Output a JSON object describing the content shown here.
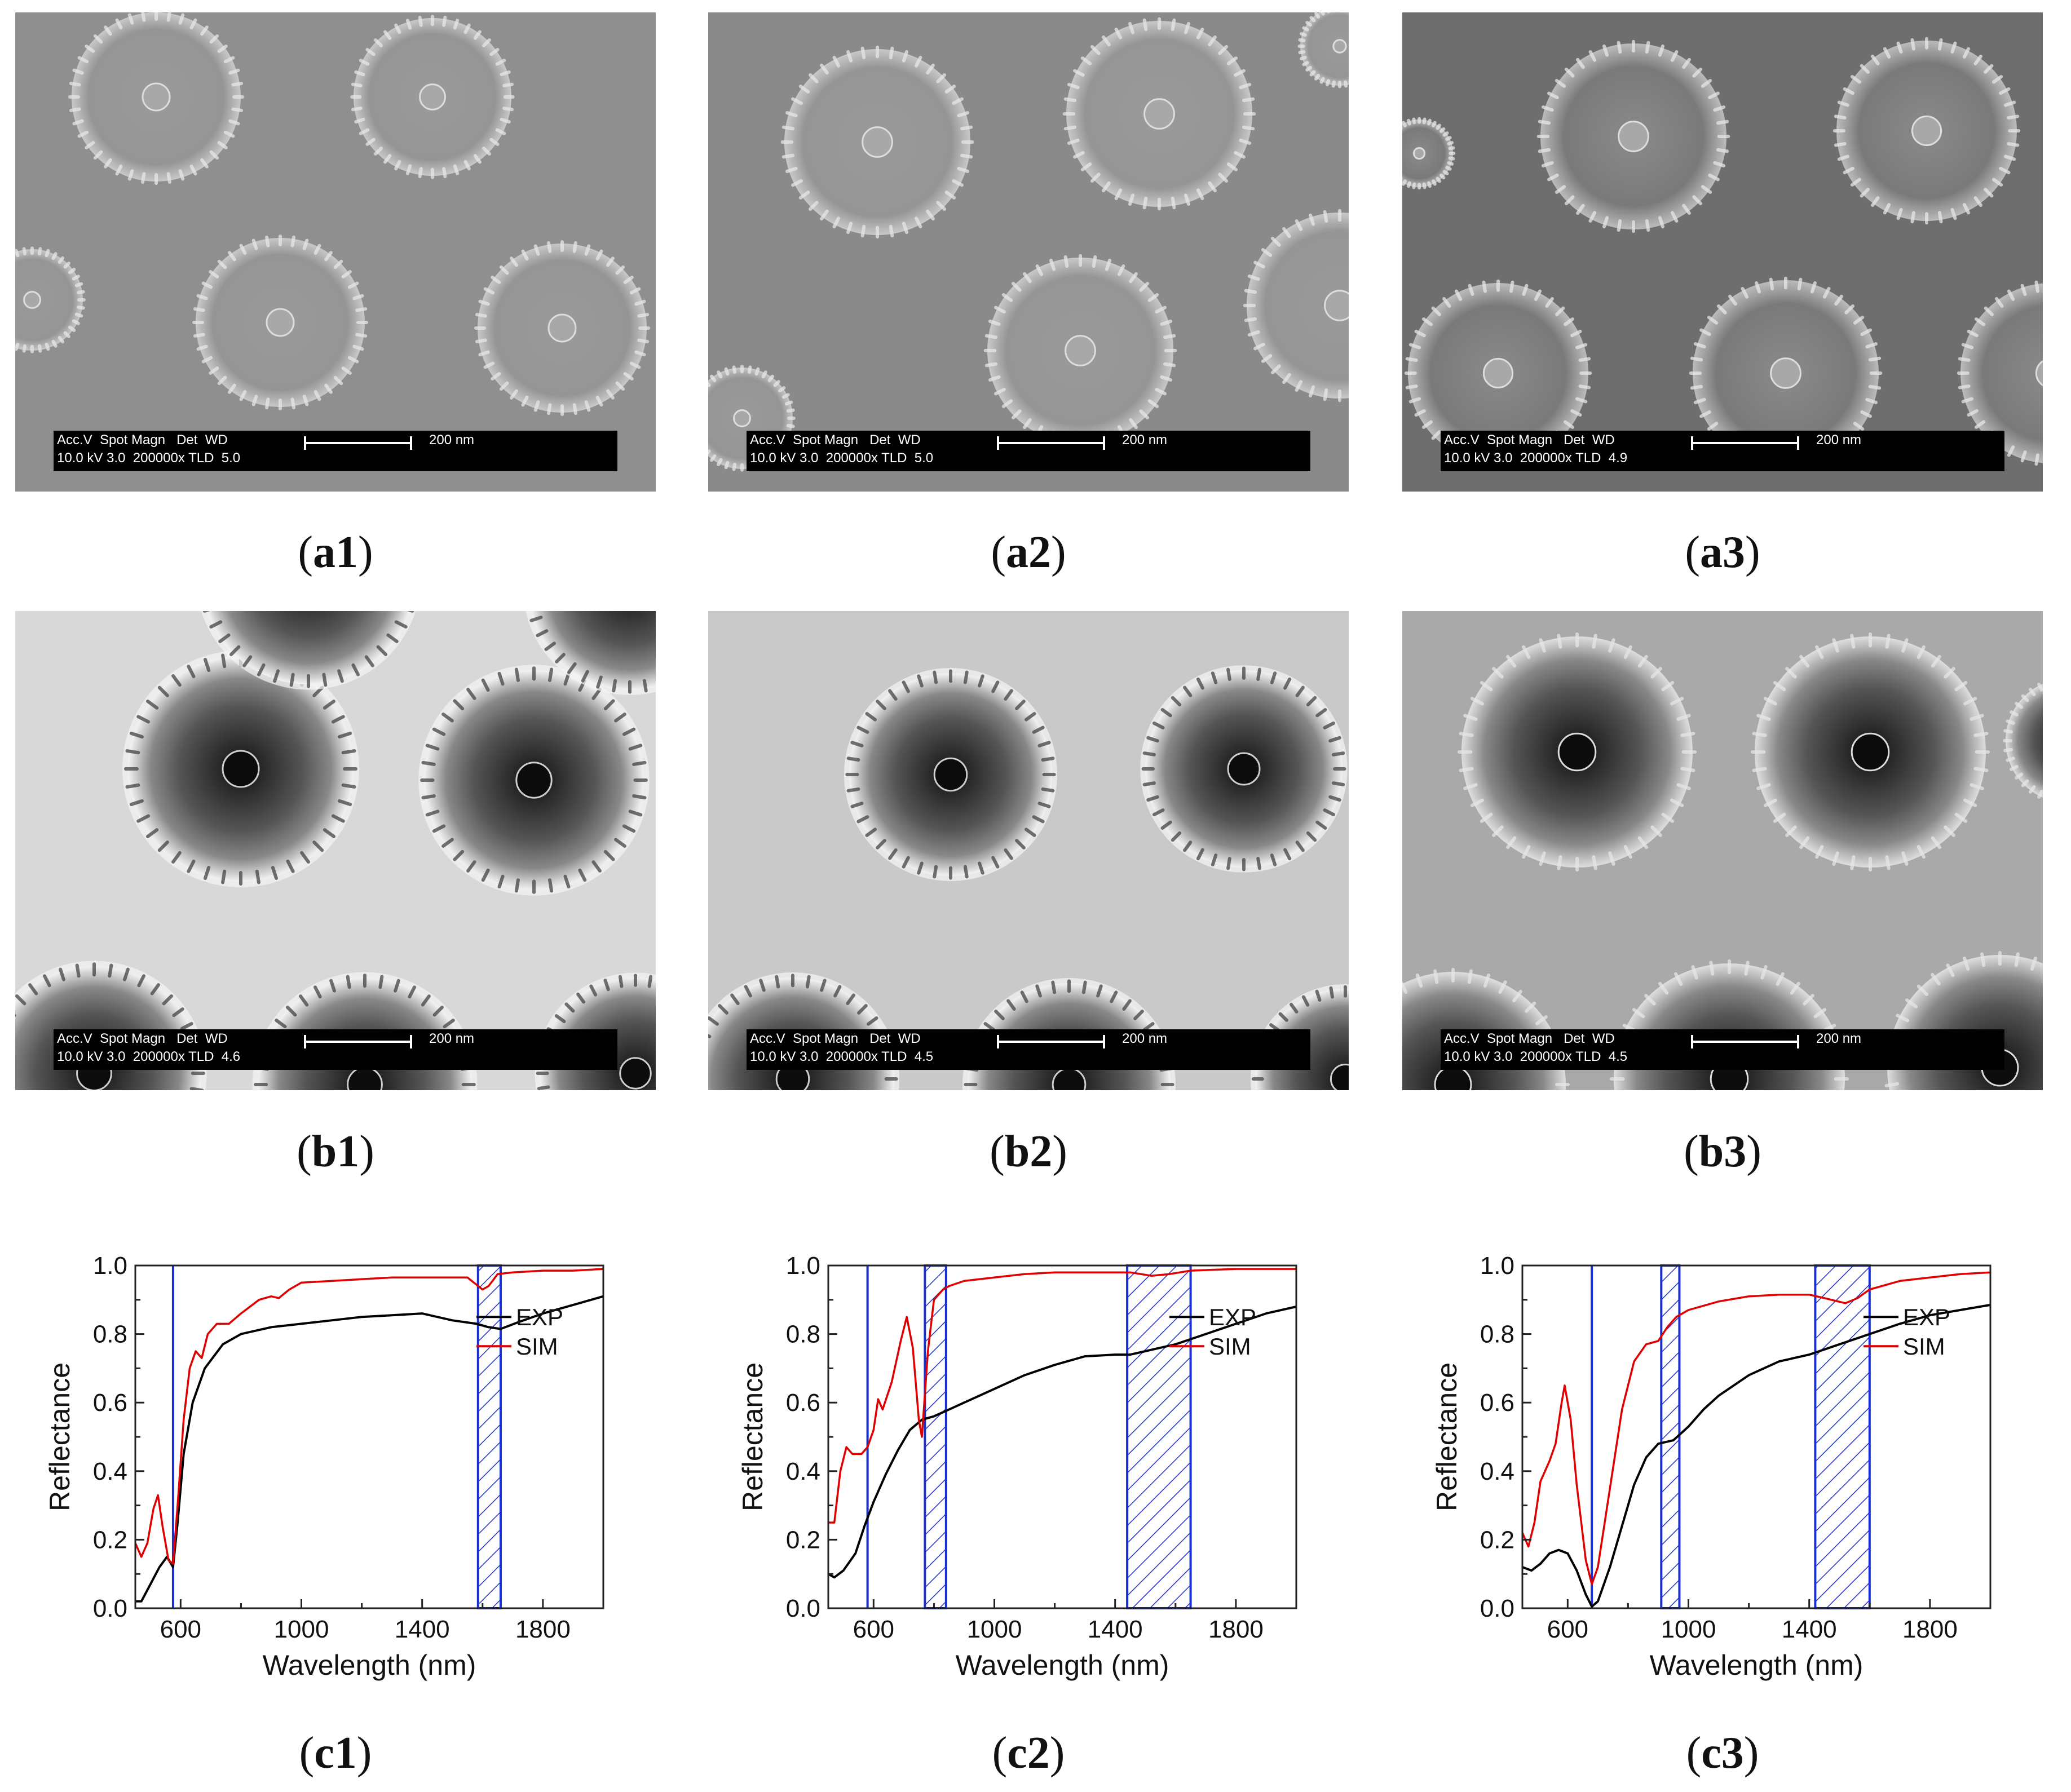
{
  "sem_panels": [
    {
      "id": "a1",
      "caption_letter": "a",
      "caption_num": "1",
      "bar_line1": "Acc.V  Spot Magn   Det  WD",
      "bar_line2": "10.0 kV 3.0  200000x TLD  5.0",
      "scale_label": "200 nm",
      "style": "flat"
    },
    {
      "id": "a2",
      "caption_letter": "a",
      "caption_num": "2",
      "bar_line1": "Acc.V  Spot Magn   Det  WD",
      "bar_line2": "10.0 kV 3.0  200000x TLD  5.0",
      "scale_label": "200 nm",
      "style": "flat"
    },
    {
      "id": "a3",
      "caption_letter": "a",
      "caption_num": "3",
      "bar_line1": "Acc.V  Spot Magn   Det  WD",
      "bar_line2": "10.0 kV 3.0  200000x TLD  4.9",
      "scale_label": "200 nm",
      "style": "flat"
    },
    {
      "id": "b1",
      "caption_letter": "b",
      "caption_num": "1",
      "bar_line1": "Acc.V  Spot Magn   Det  WD",
      "bar_line2": "10.0 kV 3.0  200000x TLD  4.6",
      "scale_label": "200 nm",
      "style": "holes"
    },
    {
      "id": "b2",
      "caption_letter": "b",
      "caption_num": "2",
      "bar_line1": "Acc.V  Spot Magn   Det  WD",
      "bar_line2": "10.0 kV 3.0  200000x TLD  4.5",
      "scale_label": "200 nm",
      "style": "holes"
    },
    {
      "id": "b3",
      "caption_letter": "b",
      "caption_num": "3",
      "bar_line1": "Acc.V  Spot Magn   Det  WD",
      "bar_line2": "10.0 kV 3.0  200000x TLD  4.5",
      "scale_label": "200 nm",
      "style": "holes"
    }
  ],
  "chart_data": [
    {
      "id": "c1",
      "caption_letter": "c",
      "caption_num": "1",
      "type": "line",
      "xlabel": "Wavelength (nm)",
      "ylabel": "Reflectance",
      "xlim": [
        450,
        2000
      ],
      "ylim": [
        0,
        1.0
      ],
      "xticks": [
        600,
        1000,
        1400,
        1800
      ],
      "yticks": [
        0.0,
        0.2,
        0.4,
        0.6,
        0.8,
        1.0
      ],
      "vlines": [
        575
      ],
      "bands": [
        [
          1585,
          1660
        ]
      ],
      "series": [
        {
          "name": "EXP",
          "color": "#000000",
          "points": [
            [
              450,
              0.02
            ],
            [
              470,
              0.02
            ],
            [
              500,
              0.07
            ],
            [
              530,
              0.12
            ],
            [
              555,
              0.15
            ],
            [
              575,
              0.12
            ],
            [
              590,
              0.25
            ],
            [
              610,
              0.45
            ],
            [
              640,
              0.6
            ],
            [
              680,
              0.7
            ],
            [
              740,
              0.77
            ],
            [
              800,
              0.8
            ],
            [
              900,
              0.82
            ],
            [
              1000,
              0.83
            ],
            [
              1100,
              0.84
            ],
            [
              1200,
              0.85
            ],
            [
              1300,
              0.855
            ],
            [
              1400,
              0.86
            ],
            [
              1500,
              0.84
            ],
            [
              1580,
              0.83
            ],
            [
              1620,
              0.82
            ],
            [
              1660,
              0.815
            ],
            [
              1720,
              0.835
            ],
            [
              1800,
              0.86
            ],
            [
              1900,
              0.885
            ],
            [
              2000,
              0.91
            ]
          ]
        },
        {
          "name": "SIM",
          "color": "#e00000",
          "points": [
            [
              450,
              0.19
            ],
            [
              470,
              0.15
            ],
            [
              490,
              0.19
            ],
            [
              510,
              0.29
            ],
            [
              525,
              0.33
            ],
            [
              540,
              0.24
            ],
            [
              560,
              0.14
            ],
            [
              575,
              0.13
            ],
            [
              590,
              0.3
            ],
            [
              610,
              0.55
            ],
            [
              630,
              0.7
            ],
            [
              650,
              0.75
            ],
            [
              670,
              0.73
            ],
            [
              690,
              0.8
            ],
            [
              720,
              0.83
            ],
            [
              760,
              0.83
            ],
            [
              800,
              0.86
            ],
            [
              860,
              0.9
            ],
            [
              900,
              0.91
            ],
            [
              925,
              0.905
            ],
            [
              960,
              0.93
            ],
            [
              1000,
              0.95
            ],
            [
              1100,
              0.955
            ],
            [
              1200,
              0.96
            ],
            [
              1300,
              0.965
            ],
            [
              1400,
              0.965
            ],
            [
              1550,
              0.965
            ],
            [
              1600,
              0.93
            ],
            [
              1620,
              0.94
            ],
            [
              1650,
              0.975
            ],
            [
              1700,
              0.98
            ],
            [
              1800,
              0.985
            ],
            [
              1900,
              0.985
            ],
            [
              2000,
              0.99
            ]
          ]
        }
      ],
      "legend": [
        {
          "name": "EXP",
          "color": "#000000"
        },
        {
          "name": "SIM",
          "color": "#e00000"
        }
      ]
    },
    {
      "id": "c2",
      "caption_letter": "c",
      "caption_num": "2",
      "type": "line",
      "xlabel": "Wavelength (nm)",
      "ylabel": "Reflectance",
      "xlim": [
        450,
        2000
      ],
      "ylim": [
        0,
        1.0
      ],
      "xticks": [
        600,
        1000,
        1400,
        1800
      ],
      "yticks": [
        0.0,
        0.2,
        0.4,
        0.6,
        0.8,
        1.0
      ],
      "vlines": [
        580
      ],
      "bands": [
        [
          770,
          840
        ],
        [
          1440,
          1650
        ]
      ],
      "series": [
        {
          "name": "EXP",
          "color": "#000000",
          "points": [
            [
              450,
              0.1
            ],
            [
              470,
              0.09
            ],
            [
              500,
              0.11
            ],
            [
              540,
              0.16
            ],
            [
              570,
              0.24
            ],
            [
              600,
              0.31
            ],
            [
              640,
              0.39
            ],
            [
              680,
              0.46
            ],
            [
              720,
              0.52
            ],
            [
              760,
              0.55
            ],
            [
              800,
              0.56
            ],
            [
              850,
              0.58
            ],
            [
              900,
              0.6
            ],
            [
              1000,
              0.64
            ],
            [
              1100,
              0.68
            ],
            [
              1200,
              0.71
            ],
            [
              1300,
              0.735
            ],
            [
              1400,
              0.74
            ],
            [
              1450,
              0.74
            ],
            [
              1500,
              0.75
            ],
            [
              1600,
              0.77
            ],
            [
              1700,
              0.8
            ],
            [
              1800,
              0.83
            ],
            [
              1900,
              0.86
            ],
            [
              2000,
              0.88
            ]
          ]
        },
        {
          "name": "SIM",
          "color": "#e00000",
          "points": [
            [
              450,
              0.25
            ],
            [
              470,
              0.25
            ],
            [
              490,
              0.4
            ],
            [
              510,
              0.47
            ],
            [
              530,
              0.45
            ],
            [
              560,
              0.45
            ],
            [
              580,
              0.47
            ],
            [
              600,
              0.52
            ],
            [
              615,
              0.61
            ],
            [
              630,
              0.58
            ],
            [
              660,
              0.66
            ],
            [
              690,
              0.78
            ],
            [
              710,
              0.85
            ],
            [
              730,
              0.76
            ],
            [
              750,
              0.55
            ],
            [
              760,
              0.5
            ],
            [
              780,
              0.75
            ],
            [
              800,
              0.9
            ],
            [
              830,
              0.93
            ],
            [
              850,
              0.94
            ],
            [
              900,
              0.955
            ],
            [
              1000,
              0.965
            ],
            [
              1100,
              0.975
            ],
            [
              1200,
              0.98
            ],
            [
              1300,
              0.98
            ],
            [
              1450,
              0.98
            ],
            [
              1520,
              0.97
            ],
            [
              1580,
              0.975
            ],
            [
              1650,
              0.985
            ],
            [
              1800,
              0.99
            ],
            [
              2000,
              0.99
            ]
          ]
        }
      ],
      "legend": [
        {
          "name": "EXP",
          "color": "#000000"
        },
        {
          "name": "SIM",
          "color": "#e00000"
        }
      ]
    },
    {
      "id": "c3",
      "caption_letter": "c",
      "caption_num": "3",
      "type": "line",
      "xlabel": "Wavelength (nm)",
      "ylabel": "Reflectance",
      "xlim": [
        450,
        2000
      ],
      "ylim": [
        0,
        1.0
      ],
      "xticks": [
        600,
        1000,
        1400,
        1800
      ],
      "yticks": [
        0.0,
        0.2,
        0.4,
        0.6,
        0.8,
        1.0
      ],
      "vlines": [
        680
      ],
      "bands": [
        [
          910,
          970
        ],
        [
          1420,
          1600
        ]
      ],
      "series": [
        {
          "name": "EXP",
          "color": "#000000",
          "points": [
            [
              450,
              0.12
            ],
            [
              480,
              0.11
            ],
            [
              510,
              0.13
            ],
            [
              540,
              0.16
            ],
            [
              570,
              0.17
            ],
            [
              600,
              0.16
            ],
            [
              630,
              0.11
            ],
            [
              660,
              0.04
            ],
            [
              680,
              0.005
            ],
            [
              700,
              0.02
            ],
            [
              740,
              0.12
            ],
            [
              780,
              0.24
            ],
            [
              820,
              0.36
            ],
            [
              860,
              0.44
            ],
            [
              900,
              0.48
            ],
            [
              950,
              0.49
            ],
            [
              1000,
              0.53
            ],
            [
              1050,
              0.58
            ],
            [
              1100,
              0.62
            ],
            [
              1200,
              0.68
            ],
            [
              1300,
              0.72
            ],
            [
              1400,
              0.74
            ],
            [
              1500,
              0.77
            ],
            [
              1600,
              0.8
            ],
            [
              1700,
              0.83
            ],
            [
              1800,
              0.855
            ],
            [
              1900,
              0.87
            ],
            [
              2000,
              0.885
            ]
          ]
        },
        {
          "name": "SIM",
          "color": "#e00000",
          "points": [
            [
              450,
              0.22
            ],
            [
              470,
              0.18
            ],
            [
              490,
              0.25
            ],
            [
              510,
              0.37
            ],
            [
              540,
              0.43
            ],
            [
              560,
              0.48
            ],
            [
              580,
              0.6
            ],
            [
              590,
              0.65
            ],
            [
              610,
              0.55
            ],
            [
              630,
              0.36
            ],
            [
              660,
              0.14
            ],
            [
              680,
              0.07
            ],
            [
              700,
              0.12
            ],
            [
              740,
              0.35
            ],
            [
              780,
              0.58
            ],
            [
              820,
              0.72
            ],
            [
              860,
              0.77
            ],
            [
              900,
              0.78
            ],
            [
              930,
              0.82
            ],
            [
              960,
              0.85
            ],
            [
              1000,
              0.87
            ],
            [
              1100,
              0.895
            ],
            [
              1200,
              0.91
            ],
            [
              1300,
              0.915
            ],
            [
              1400,
              0.915
            ],
            [
              1450,
              0.905
            ],
            [
              1520,
              0.89
            ],
            [
              1560,
              0.905
            ],
            [
              1600,
              0.93
            ],
            [
              1700,
              0.955
            ],
            [
              1800,
              0.965
            ],
            [
              1900,
              0.975
            ],
            [
              2000,
              0.98
            ]
          ]
        }
      ],
      "legend": [
        {
          "name": "EXP",
          "color": "#000000"
        },
        {
          "name": "SIM",
          "color": "#e00000"
        }
      ]
    }
  ]
}
